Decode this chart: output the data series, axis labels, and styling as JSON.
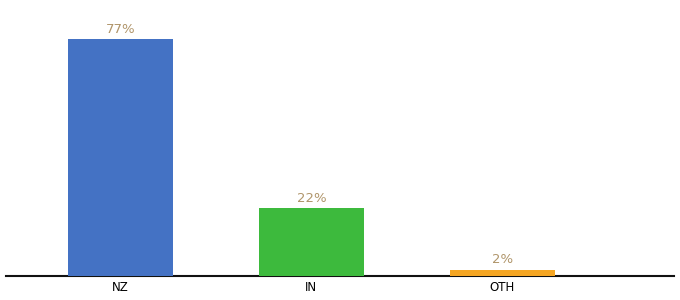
{
  "categories": [
    "NZ",
    "IN",
    "OTH"
  ],
  "values": [
    77,
    22,
    2
  ],
  "bar_colors": [
    "#4472c4",
    "#3dba3d",
    "#f5a623"
  ],
  "label_texts": [
    "77%",
    "22%",
    "2%"
  ],
  "ylim": [
    0,
    88
  ],
  "bar_width": 0.55,
  "label_fontsize": 9.5,
  "tick_fontsize": 8.5,
  "background_color": "#ffffff",
  "label_color": "#b0956a",
  "x_positions": [
    1,
    2,
    3
  ],
  "xlim": [
    0.4,
    3.9
  ]
}
